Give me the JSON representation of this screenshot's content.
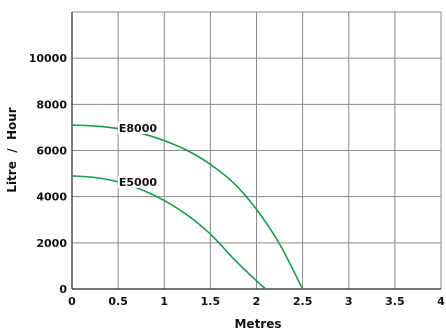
{
  "chart_data": {
    "type": "line",
    "title": "",
    "xlabel": "Metres",
    "ylabel": "Litre  /  Hour",
    "xlim": [
      0,
      4
    ],
    "ylim": [
      0,
      12000
    ],
    "x_ticks": [
      0,
      0.5,
      1,
      1.5,
      2,
      2.5,
      3,
      3.5,
      4
    ],
    "x_tick_labels": [
      "0",
      "0.5",
      "1",
      "1.5",
      "2",
      "2.5",
      "3",
      "3.5",
      "4"
    ],
    "y_ticks": [
      0,
      2000,
      4000,
      6000,
      8000,
      10000
    ],
    "y_tick_labels": [
      "0",
      "2000",
      "4000",
      "6000",
      "8000",
      "10000"
    ],
    "grid": true,
    "series_color": "#1a9a4a",
    "series": [
      {
        "name": "E8000",
        "x": [
          0,
          0.25,
          0.5,
          0.75,
          1.0,
          1.25,
          1.5,
          1.75,
          2.0,
          2.25,
          2.5
        ],
        "y": [
          7100,
          7060,
          6950,
          6740,
          6430,
          6000,
          5400,
          4600,
          3450,
          1950,
          0
        ]
      },
      {
        "name": "E5000",
        "x": [
          0,
          0.25,
          0.5,
          0.75,
          1.0,
          1.25,
          1.5,
          1.75,
          2.0,
          2.1
        ],
        "y": [
          4900,
          4830,
          4640,
          4310,
          3830,
          3200,
          2380,
          1320,
          350,
          0
        ]
      }
    ],
    "annotations": [
      {
        "text": "E8000",
        "series": "E8000",
        "at_x": 0.53
      },
      {
        "text": "E5000",
        "series": "E5000",
        "at_x": 0.53
      }
    ]
  }
}
